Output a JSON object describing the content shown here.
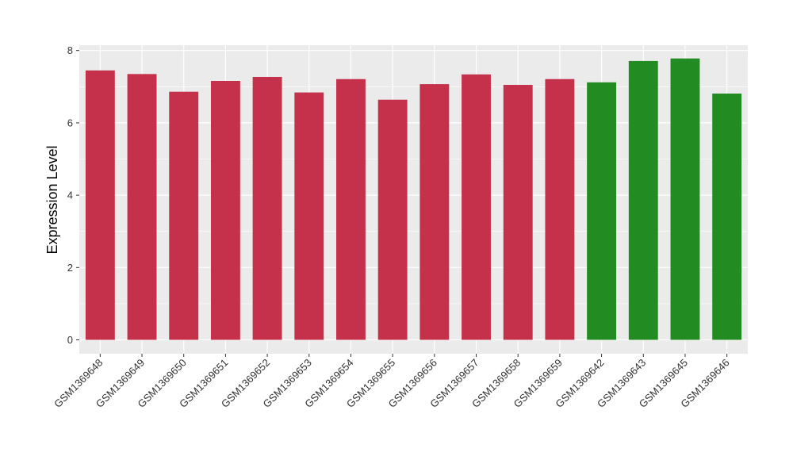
{
  "chart_data": {
    "type": "bar",
    "title": "",
    "xlabel": "",
    "ylabel": "Expression Level",
    "ylim": [
      0,
      8.4
    ],
    "yticks": [
      0,
      2,
      4,
      6,
      8
    ],
    "grid": true,
    "legend": "none",
    "categories": [
      "GSM1369648",
      "GSM1369649",
      "GSM1369650",
      "GSM1369651",
      "GSM1369652",
      "GSM1369653",
      "GSM1369654",
      "GSM1369655",
      "GSM1369656",
      "GSM1369657",
      "GSM1369658",
      "GSM1369659",
      "GSM1369642",
      "GSM1369643",
      "GSM1369645",
      "GSM1369646"
    ],
    "values": [
      7.45,
      7.35,
      6.86,
      7.16,
      7.27,
      6.84,
      7.21,
      6.64,
      7.07,
      7.34,
      7.05,
      7.21,
      7.12,
      7.71,
      7.78,
      6.81
    ],
    "colors": [
      "#c5314a",
      "#c5314a",
      "#c5314a",
      "#c5314a",
      "#c5314a",
      "#c5314a",
      "#c5314a",
      "#c5314a",
      "#c5314a",
      "#c5314a",
      "#c5314a",
      "#c5314a",
      "#228b22",
      "#228b22",
      "#228b22",
      "#228b22"
    ],
    "panel_background": "#ebebeb",
    "grid_color": "#ffffff"
  }
}
